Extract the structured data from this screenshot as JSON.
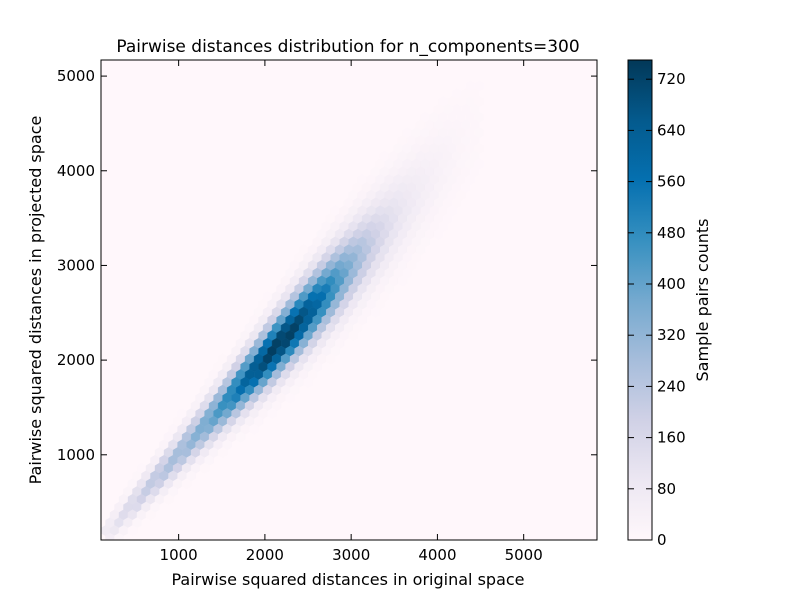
{
  "chart_data": {
    "type": "heatmap",
    "subtype": "hexbin",
    "title": "Pairwise distances distribution for n_components=300",
    "xlabel": "Pairwise squared distances in original space",
    "ylabel": "Pairwise squared distances in projected space",
    "xlim": [
      100,
      5850
    ],
    "ylim": [
      100,
      5170
    ],
    "xticks": [
      1000,
      2000,
      3000,
      4000,
      5000
    ],
    "yticks": [
      1000,
      2000,
      3000,
      4000,
      5000
    ],
    "xtick_labels": [
      "1000",
      "2000",
      "3000",
      "4000",
      "5000"
    ],
    "ytick_labels": [
      "1000",
      "2000",
      "3000",
      "4000",
      "5000"
    ],
    "colormap": "PuBu",
    "background_color": "#fff7fb",
    "grid": false,
    "colorbar": {
      "label": "Sample pairs counts",
      "range": [
        0,
        750
      ],
      "ticks": [
        0,
        80,
        160,
        240,
        320,
        400,
        480,
        560,
        640,
        720
      ],
      "tick_labels": [
        "0",
        "80",
        "160",
        "240",
        "320",
        "400",
        "480",
        "560",
        "640",
        "720"
      ],
      "position": "right"
    },
    "density_model": {
      "description": "Counts concentrated along the diagonal y≈x; peak near (2200, 2200)",
      "peak_count": 740,
      "peak_x": 2200,
      "slope": 1.0
    }
  }
}
